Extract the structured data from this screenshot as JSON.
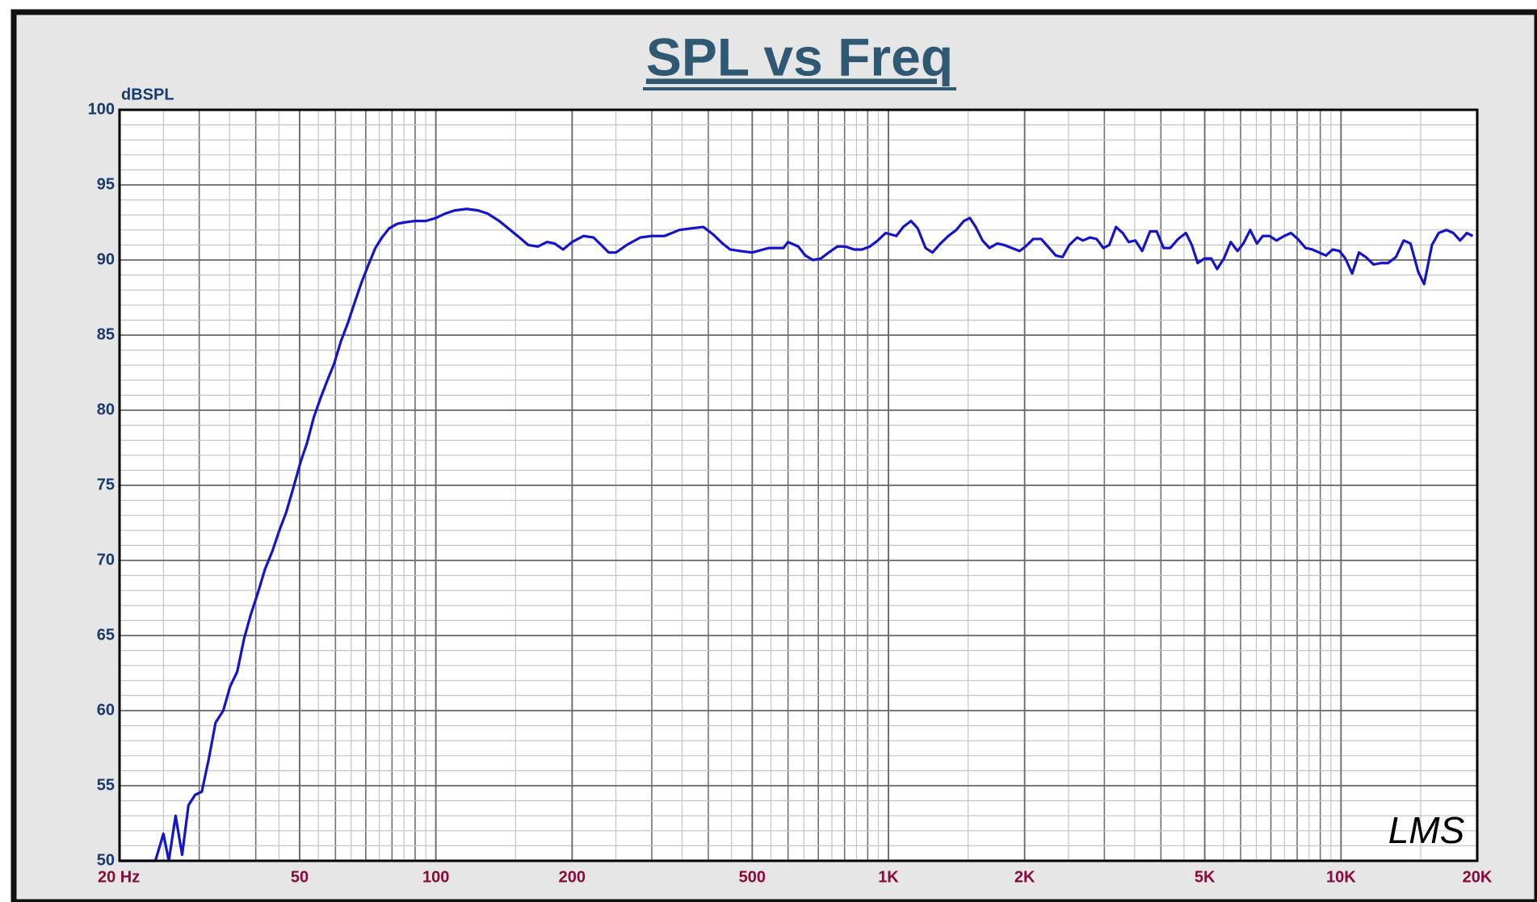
{
  "chart_data": {
    "type": "line",
    "title": "SPL vs Freq",
    "y_unit_label": "dBSPL",
    "watermark": "LMS",
    "xscale": "log",
    "xlim": [
      20,
      20000
    ],
    "ylim": [
      50,
      100
    ],
    "xticks": [
      {
        "value": 20,
        "label": "20 Hz"
      },
      50,
      100,
      200,
      500,
      {
        "value": 1000,
        "label": "1K"
      },
      {
        "value": 2000,
        "label": "2K"
      },
      {
        "value": 5000,
        "label": "5K"
      },
      {
        "value": 10000,
        "label": "10K"
      },
      {
        "value": 20000,
        "label": "20K"
      }
    ],
    "yticks": [
      50,
      55,
      60,
      65,
      70,
      75,
      80,
      85,
      90,
      95,
      100
    ],
    "grid": true,
    "x": [
      20,
      24,
      25,
      25.7,
      26.6,
      27.5,
      28.4,
      29.4,
      30.4,
      31.5,
      32.6,
      33.9,
      35.1,
      36.4,
      37.7,
      39,
      40.4,
      41.9,
      43.5,
      45.1,
      46.7,
      48.6,
      50.3,
      51.9,
      53.7,
      55.6,
      57.6,
      59.6,
      61.7,
      63.9,
      66.2,
      68.5,
      71,
      73.5,
      76,
      78.8,
      82,
      85,
      90,
      95,
      100,
      105,
      110,
      117,
      124,
      130,
      138,
      146,
      153,
      160,
      168,
      176,
      183,
      191,
      200,
      212,
      223,
      232,
      241,
      250,
      264,
      283,
      300,
      320,
      345,
      365,
      390,
      410,
      430,
      447,
      470,
      500,
      544,
      586,
      600,
      632,
      655,
      681,
      709,
      738,
      771,
      803,
      840,
      874,
      910,
      947,
      986,
      1041,
      1078,
      1122,
      1161,
      1208,
      1251,
      1303,
      1356,
      1412,
      1468,
      1513,
      1559,
      1614,
      1672,
      1740,
      1801,
      1873,
      1949,
      2009,
      2090,
      2175,
      2251,
      2343,
      2425,
      2510,
      2612,
      2691,
      2786,
      2884,
      2985,
      3075,
      3183,
      3294,
      3394,
      3513,
      3637,
      3784,
      3916,
      4054,
      4196,
      4366,
      4543,
      4681,
      4823,
      4993,
      5168,
      5325,
      5512,
      5706,
      5906,
      6085,
      6299,
      6521,
      6718,
      6954,
      7199,
      7490,
      7754,
      8026,
      8351,
      8644,
      8948,
      9262,
      9588,
      9925,
      10226,
      10585,
      10957,
      11342,
      11801,
      12278,
      12709,
      13224,
      13758,
      14242,
      14818,
      15265,
      15883,
      16441,
      17107,
      17709,
      18331,
      18975,
      19551
    ],
    "series": [
      {
        "name": "SPL",
        "color": "#1414c8",
        "values": [
          50,
          50,
          51.8,
          50,
          53,
          50.4,
          53.7,
          54.4,
          54.6,
          56.8,
          59.2,
          60,
          61.6,
          62.6,
          64.8,
          66.4,
          67.8,
          69.4,
          70.6,
          72,
          73.2,
          75,
          76.6,
          77.8,
          79.5,
          80.8,
          82,
          83.1,
          84.6,
          85.8,
          87.2,
          88.5,
          89.7,
          90.8,
          91.5,
          92.1,
          92.4,
          92.5,
          92.6,
          92.6,
          92.8,
          93.1,
          93.3,
          93.4,
          93.3,
          93.1,
          92.6,
          92,
          91.5,
          91,
          90.9,
          91.2,
          91.1,
          90.7,
          91.2,
          91.6,
          91.5,
          91,
          90.5,
          90.5,
          91,
          91.5,
          91.6,
          91.6,
          92,
          92.1,
          92.2,
          91.7,
          91.1,
          90.7,
          90.6,
          90.5,
          90.8,
          90.8,
          91.2,
          90.9,
          90.3,
          90,
          90.1,
          90.5,
          90.9,
          90.9,
          90.7,
          90.7,
          90.9,
          91.3,
          91.8,
          91.6,
          92.2,
          92.6,
          92.1,
          90.8,
          90.5,
          91.1,
          91.6,
          92,
          92.6,
          92.8,
          92.2,
          91.3,
          90.8,
          91.1,
          91,
          90.8,
          90.6,
          90.9,
          91.4,
          91.4,
          90.9,
          90.3,
          90.2,
          91,
          91.5,
          91.3,
          91.5,
          91.4,
          90.8,
          91,
          92.2,
          91.8,
          91.2,
          91.3,
          90.6,
          91.9,
          91.9,
          90.8,
          90.8,
          91.4,
          91.8,
          91,
          89.8,
          90.1,
          90.1,
          89.4,
          90.1,
          91.2,
          90.6,
          91.1,
          92,
          91.1,
          91.6,
          91.6,
          91.3,
          91.6,
          91.8,
          91.4,
          90.8,
          90.7,
          90.5,
          90.3,
          90.7,
          90.6,
          90.1,
          89.1,
          90.5,
          90.2,
          89.7,
          89.8,
          89.8,
          90.2,
          91.3,
          91.1,
          89.2,
          88.4,
          91,
          91.8,
          92,
          91.8,
          91.3,
          91.8,
          91.6
        ]
      }
    ]
  }
}
